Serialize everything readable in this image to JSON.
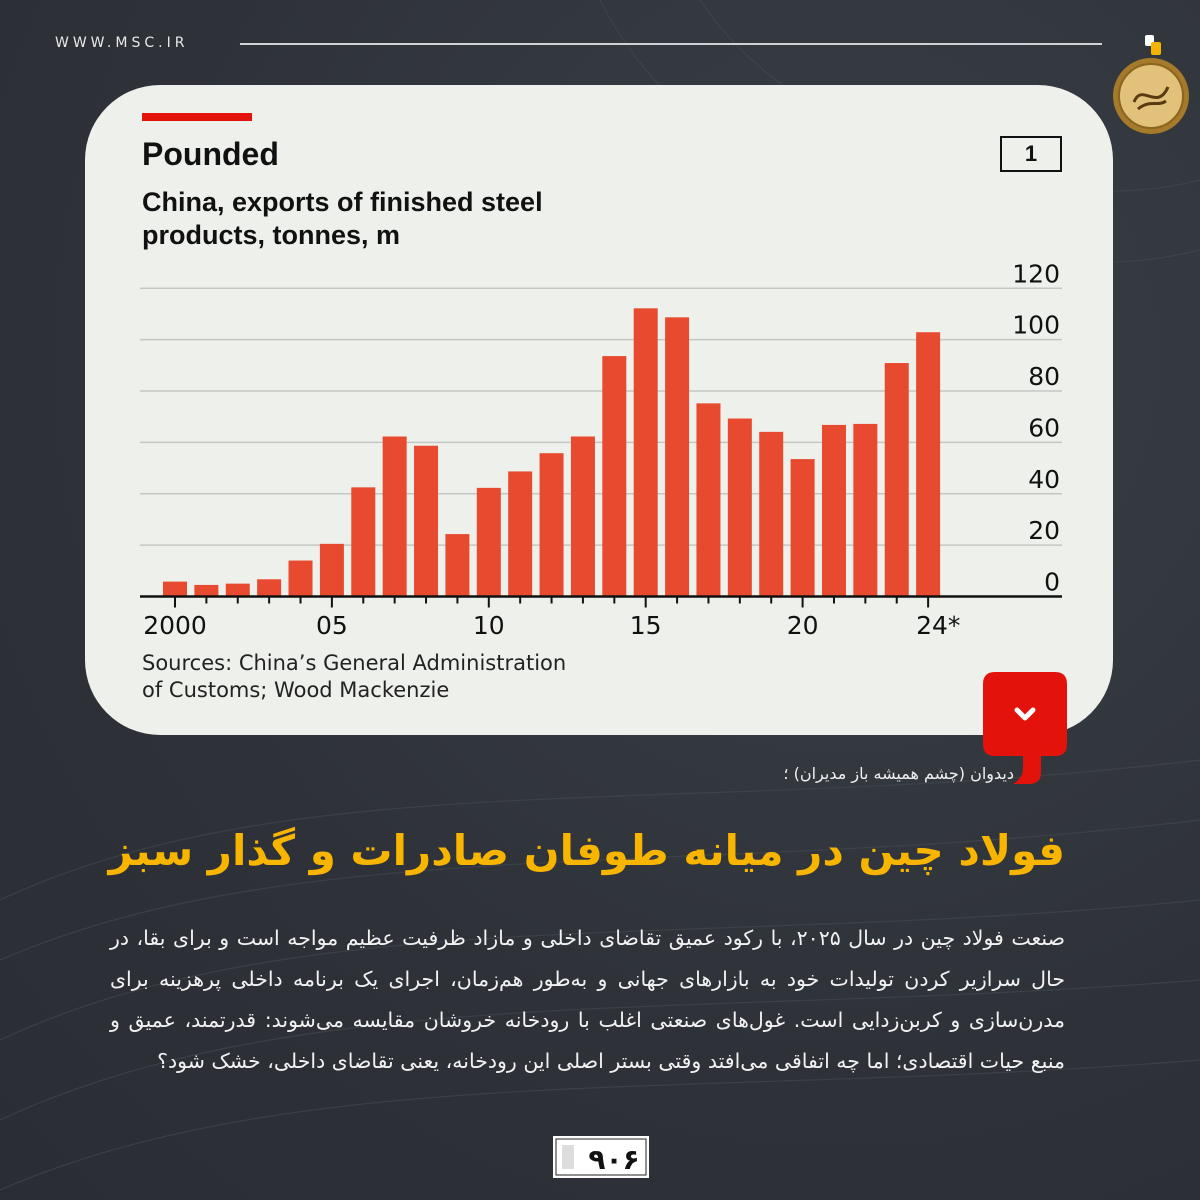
{
  "header": {
    "site": "WWW.MSC.IR"
  },
  "card": {
    "title": "Pounded",
    "subtitle_line1": "China, exports of finished steel",
    "subtitle_line2": "products, tonnes, m",
    "chart_number": "1",
    "sources_line1": "Sources: China’s General Administration",
    "sources_line2": "of Customs; Wood Mackenzie"
  },
  "colors": {
    "bar": "#e84a2f",
    "accent_red": "#e3120b",
    "headline": "#f7b500",
    "background": "#2e3238",
    "card": "#eef0eb"
  },
  "chart_data": {
    "type": "bar",
    "title": "Pounded",
    "subtitle": "China, exports of finished steel products, tonnes, m",
    "categories": [
      "2000",
      "2001",
      "2002",
      "2003",
      "2004",
      "2005",
      "2006",
      "2007",
      "2008",
      "2009",
      "2010",
      "2011",
      "2012",
      "2013",
      "2014",
      "2015",
      "2016",
      "2017",
      "2018",
      "2019",
      "2020",
      "2021",
      "2022",
      "2023",
      "2024*"
    ],
    "values": [
      5.8,
      4.5,
      5,
      6.7,
      14,
      20.5,
      42.5,
      62.3,
      58.7,
      24.3,
      42.3,
      48.7,
      55.8,
      62.3,
      93.6,
      112.2,
      108.7,
      75.2,
      69.3,
      64.1,
      53.5,
      66.8,
      67.2,
      90.9,
      102.9
    ],
    "x_tick_labels": [
      "2000",
      "05",
      "10",
      "15",
      "20",
      "24*"
    ],
    "y_ticks": [
      "0",
      "20",
      "40",
      "60",
      "80",
      "100",
      "120"
    ],
    "ylim": [
      0,
      120
    ],
    "y_axis_side": "right",
    "grid": true,
    "xlabel": "",
    "ylabel": ""
  },
  "article": {
    "caption": "دیدوان (چشم همیشه باز مدیران) ؛",
    "headline": "فولاد چین در میانه طوفان صادرات و گذار سبز",
    "body": "صنعت فولاد چین در سال ۲۰۲۵، با رکود عمیق تقاضای داخلی و مازاد ظرفیت عظیم مواجه است و برای بقا، در حال سرازیر کردن تولیدات خود به بازارهای جهانی و به‌طور هم‌زمان، اجرای یک برنامه داخلی پرهزینه برای مدرن‌سازی و کربن‌زدایی است. غول‌های صنعتی اغلب با رودخانه خروشان مقایسه می‌شوند: قدرتمند، عمیق و منبع حیات اقتصادی؛ اما چه اتفاقی می‌افتد وقتی بستر اصلی این رودخانه، یعنی تقاضای داخلی، خشک شود؟"
  },
  "icons": {
    "badge": "chevron-down-icon",
    "seal": "calligraphy-seal-icon",
    "footer_logo": "group-logo-icon"
  }
}
